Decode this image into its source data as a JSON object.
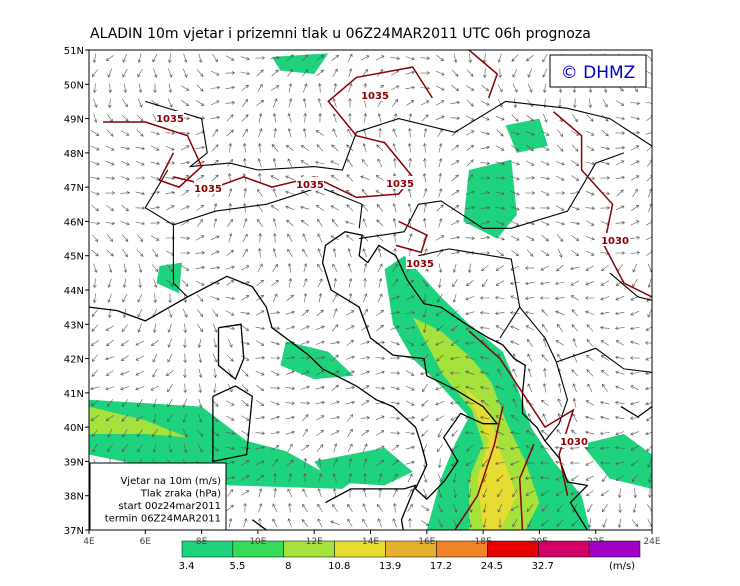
{
  "title": "ALADIN 10m vjetar i prizemni tlak u 06Z24MAR2011 UTC 06h prognoza",
  "badge": "© DHMZ",
  "latitudes": [
    "51N",
    "50N",
    "49N",
    "48N",
    "47N",
    "46N",
    "45N",
    "44N",
    "43N",
    "42N",
    "41N",
    "40N",
    "39N",
    "38N",
    "37N"
  ],
  "longitudes": [
    "4E",
    "6E",
    "8E",
    "10E",
    "12E",
    "14E",
    "16E",
    "18E",
    "20E",
    "22E",
    "24E"
  ],
  "isobars": [
    "1035",
    "1035",
    "1035",
    "1035",
    "1035",
    "1035",
    "1030",
    "1030"
  ],
  "legend": {
    "lines": [
      "Vjetar na 10m (m/s)",
      "Tlak zraka (hPa)",
      "start 00z24mar2011",
      "termin 06Z24MAR2011"
    ]
  },
  "colorbar": {
    "labels": [
      "3.4",
      "5.5",
      "8",
      "10.8",
      "13.9",
      "17.2",
      "24.5",
      "32.7"
    ],
    "unit": "(m/s)"
  }
}
